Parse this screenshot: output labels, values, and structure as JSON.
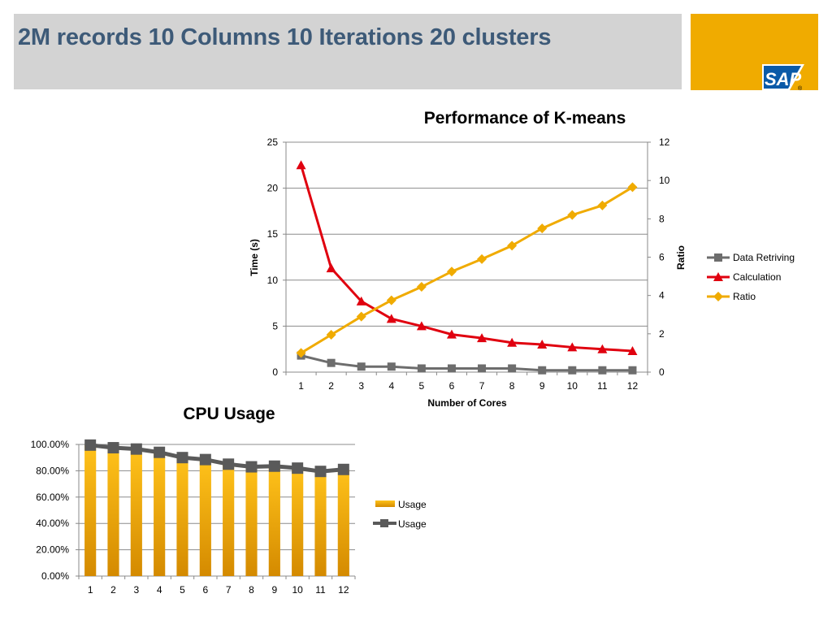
{
  "slide": {
    "title": "2M records 10 Columns 10 Iterations 20 clusters",
    "logo_text": "SAP",
    "logo_mark": "®"
  },
  "colors": {
    "title_bar": "#d3d3d3",
    "title_text": "#3d5a78",
    "logo_bg": "#f0ab00",
    "data_retriving": "#6d6d6d",
    "calculation": "#e0000f",
    "ratio": "#f0ab00",
    "usage_bar": "#f0ab00",
    "usage_line": "#5a5a5a"
  },
  "chart_data": [
    {
      "type": "line",
      "title": "Performance of K-means",
      "xlabel": "Number of Cores",
      "ylabel": "Time (s)",
      "y2label": "Ratio",
      "x": [
        1,
        2,
        3,
        4,
        5,
        6,
        7,
        8,
        9,
        10,
        11,
        12
      ],
      "ylim": [
        0,
        25
      ],
      "yticks": [
        0,
        5,
        10,
        15,
        20,
        25
      ],
      "y2lim": [
        0,
        12
      ],
      "y2ticks": [
        0,
        2,
        4,
        6,
        8,
        10,
        12
      ],
      "grid": true,
      "legend_position": "right",
      "series": [
        {
          "name": "Data Retriving",
          "axis": "left",
          "marker": "square",
          "color": "#6d6d6d",
          "values": [
            1.8,
            1.0,
            0.6,
            0.6,
            0.4,
            0.4,
            0.4,
            0.4,
            0.2,
            0.2,
            0.2,
            0.2
          ]
        },
        {
          "name": "Calculation",
          "axis": "left",
          "marker": "triangle",
          "color": "#e0000f",
          "values": [
            22.5,
            11.3,
            7.7,
            5.8,
            5.0,
            4.1,
            3.7,
            3.2,
            3.0,
            2.7,
            2.5,
            2.3
          ]
        },
        {
          "name": "Ratio",
          "axis": "right",
          "marker": "diamond",
          "color": "#f0ab00",
          "values": [
            1.0,
            1.95,
            2.9,
            3.75,
            4.45,
            5.25,
            5.9,
            6.6,
            7.5,
            8.2,
            8.7,
            9.65
          ]
        }
      ]
    },
    {
      "type": "bar",
      "title": "CPU Usage",
      "xlabel": "",
      "ylabel": "",
      "categories": [
        "1",
        "2",
        "3",
        "4",
        "5",
        "6",
        "7",
        "8",
        "9",
        "10",
        "11",
        "12"
      ],
      "ylim": [
        0,
        100
      ],
      "yticks": [
        "0.00%",
        "20.00%",
        "40.00%",
        "60.00%",
        "80.00%",
        "100.00%"
      ],
      "grid": true,
      "legend_position": "right",
      "series": [
        {
          "name": "Usage",
          "kind": "bar",
          "color": "#f0ab00",
          "values": [
            99.5,
            97.5,
            96.5,
            94,
            90,
            88.5,
            85,
            83,
            83.5,
            82,
            79.5,
            81
          ]
        },
        {
          "name": "Usage",
          "kind": "line",
          "marker": "square",
          "color": "#5a5a5a",
          "values": [
            99.5,
            97.5,
            96.5,
            94,
            90,
            88.5,
            85,
            83,
            83.5,
            82,
            79.5,
            81
          ]
        }
      ]
    }
  ]
}
